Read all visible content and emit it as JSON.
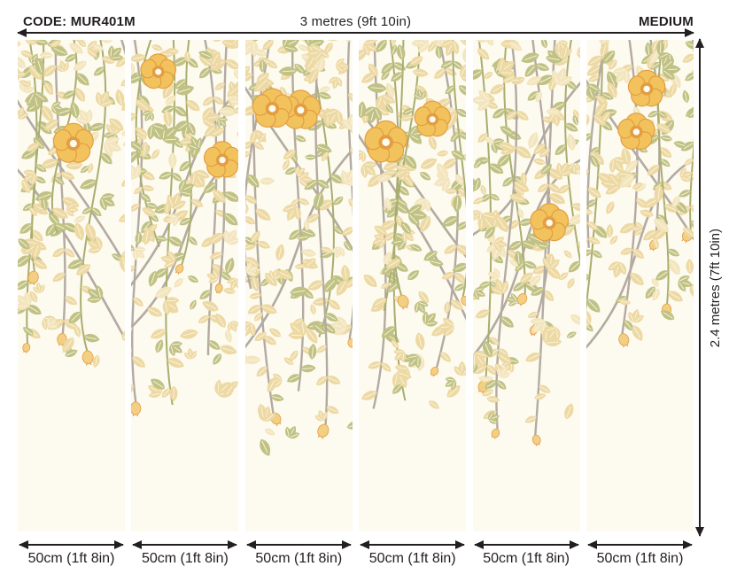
{
  "header": {
    "code_label": "CODE: MUR401M",
    "width_label": "3 metres (9ft 10in)",
    "size_label": "MEDIUM"
  },
  "side": {
    "height_label": "2.4 metres (7ft 10in)"
  },
  "panels": [
    {
      "width_label": "50cm (1ft 8in)",
      "drape_depth": 380
    },
    {
      "width_label": "50cm (1ft 8in)",
      "drape_depth": 423
    },
    {
      "width_label": "50cm (1ft 8in)",
      "drape_depth": 473
    },
    {
      "width_label": "50cm (1ft 8in)",
      "drape_depth": 433
    },
    {
      "width_label": "50cm (1ft 8in)",
      "drape_depth": 452
    },
    {
      "width_label": "50cm (1ft 8in)",
      "drape_depth": 347
    }
  ],
  "colors": {
    "background": "#FFFFFF",
    "panel_background": "#FDFAEF",
    "leaf_tan": "#EDD9A4",
    "leaf_tan_light": "#F3E5BE",
    "leaf_olive": "#C0C285",
    "stem": "#A9AD6F",
    "branch": "#B3AAA2",
    "vein": "#FAF4DF",
    "flower_petal": "#F2C35C",
    "flower_shade": "#E39D43",
    "bud": "#F3CF83",
    "dimension_line": "#231F20",
    "text": "#221E1F"
  }
}
